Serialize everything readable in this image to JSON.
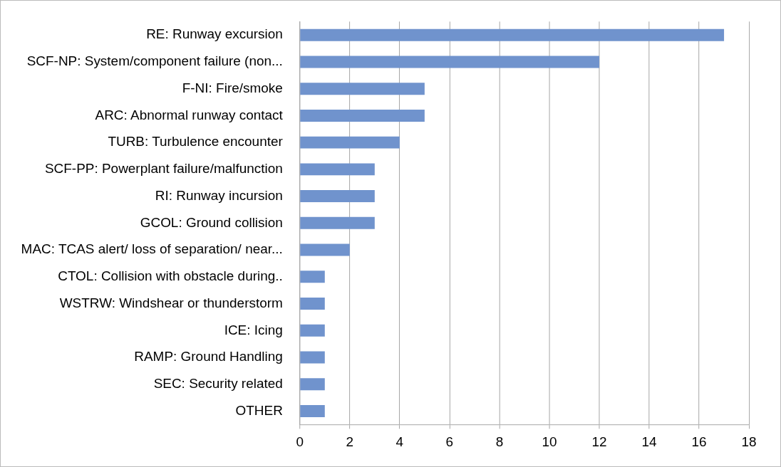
{
  "chart_data": {
    "type": "bar",
    "orientation": "horizontal",
    "categories": [
      "RE: Runway excursion",
      "SCF-NP: System/component failure (non...",
      "F-NI: Fire/smoke",
      "ARC: Abnormal runway contact",
      "TURB: Turbulence encounter",
      "SCF-PP: Powerplant failure/malfunction",
      "RI: Runway incursion",
      "GCOL: Ground collision",
      "MAC: TCAS alert/ loss of separation/ near...",
      "CTOL: Collision with obstacle during..",
      "WSTRW: Windshear or thunderstorm",
      "ICE: Icing",
      "RAMP: Ground Handling",
      "SEC: Security related",
      "OTHER"
    ],
    "values": [
      17,
      12,
      5,
      5,
      4,
      3,
      3,
      3,
      2,
      1,
      1,
      1,
      1,
      1,
      1
    ],
    "color": "#7093cd",
    "xlim": [
      0,
      18
    ],
    "xticks": [
      0,
      2,
      4,
      6,
      8,
      10,
      12,
      14,
      16,
      18
    ],
    "grid": "x"
  }
}
